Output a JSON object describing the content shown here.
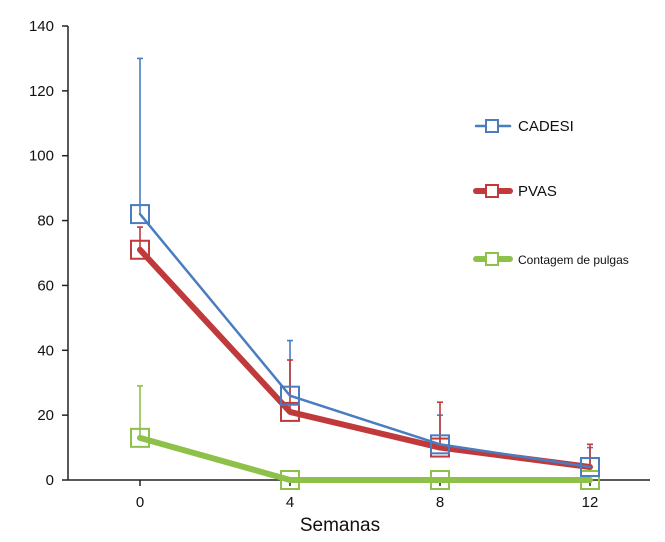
{
  "chart_data": {
    "type": "line",
    "title": "",
    "ylabel": "",
    "xlabel": "Semanas",
    "x": [
      0,
      4,
      8,
      12
    ],
    "xticks": [
      "0",
      "4",
      "8",
      "12"
    ],
    "yticks": [
      "0",
      "20",
      "40",
      "60",
      "80",
      "100",
      "120",
      "140"
    ],
    "ylim": [
      0,
      140
    ],
    "grid": false,
    "legend_position": "right",
    "series": [
      {
        "name": "CADESI",
        "values": [
          82,
          26,
          11,
          4
        ],
        "error_upper": [
          130,
          43,
          20,
          10
        ],
        "color": "#4a7dbf",
        "stroke": "thin",
        "marker": "hollow-square"
      },
      {
        "name": "PVAS",
        "values": [
          71,
          21,
          10,
          4
        ],
        "error_upper": [
          78,
          37,
          24,
          11
        ],
        "color": "#c0393b",
        "stroke": "thick",
        "marker": "hollow-square"
      },
      {
        "name": "Contagem de pulgas",
        "values": [
          13,
          0,
          0,
          0
        ],
        "error_upper": [
          29,
          0,
          0,
          0
        ],
        "color": "#8dc14a",
        "stroke": "thick",
        "marker": "hollow-square"
      }
    ]
  }
}
